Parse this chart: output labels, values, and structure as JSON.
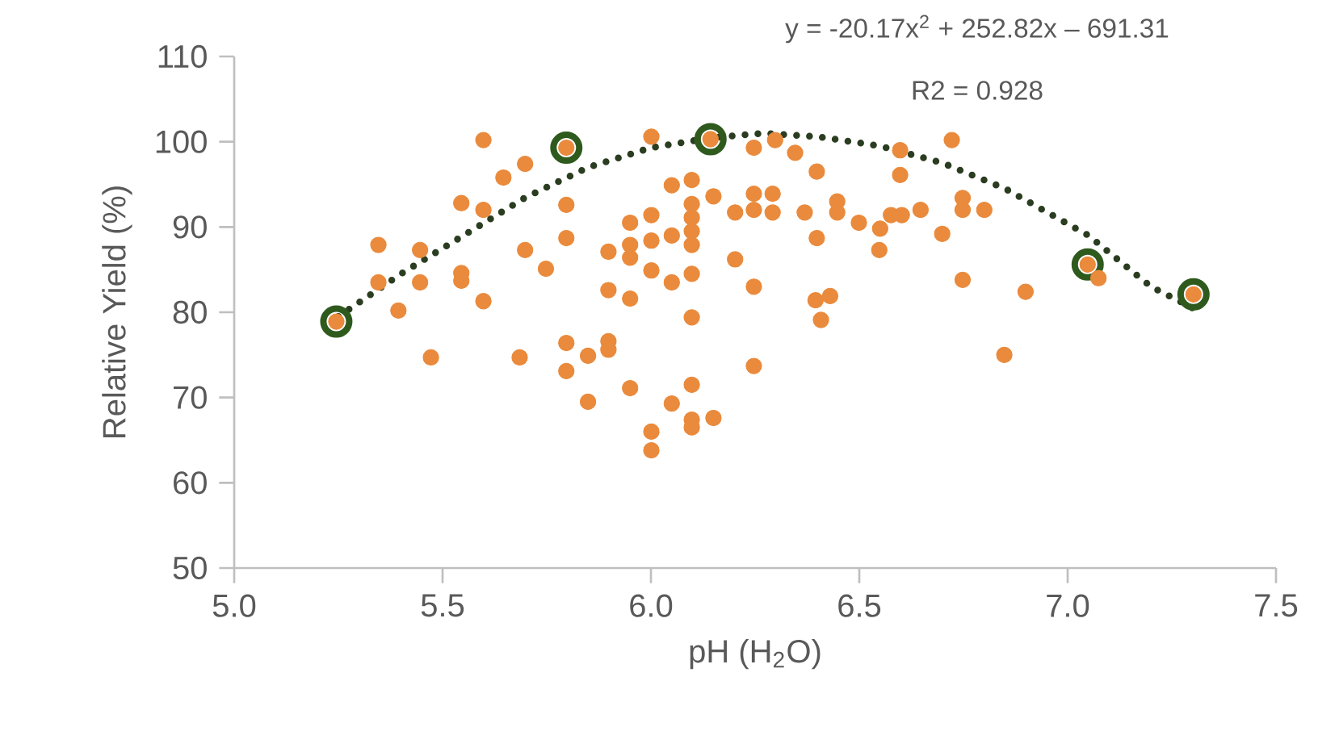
{
  "chart_data": {
    "type": "scatter",
    "xlabel": "pH (H$_{2}$O)",
    "ylabel": "Relative Yield (%)",
    "annotations": [
      "y = -20.17x$^{2}$ + 252.82x – 691.31",
      "R2 = 0.928"
    ],
    "xlim": [
      5,
      7.5
    ],
    "ylim": [
      50,
      110
    ],
    "xticks": [
      {
        "value": 5,
        "label": "5.0"
      },
      5.5,
      {
        "value": 6,
        "label": "6.0"
      },
      6.5,
      {
        "value": 7,
        "label": "7.0"
      },
      7.5
    ],
    "yticks": [
      50,
      60,
      70,
      80,
      90,
      100,
      110
    ],
    "marker": "circle",
    "grid": false,
    "series": [
      {
        "color": "#2f5a1e",
        "x": [
          5.245,
          5.797,
          6.143,
          7.048,
          7.302
        ],
        "values": [
          78.9,
          99.3,
          100.3,
          85.6,
          82.1
        ]
      },
      {
        "color": "#ea8a3c",
        "x": [
          5.245,
          5.797,
          6.143,
          7.048,
          7.302,
          5.598,
          5.698,
          5.646,
          5.545,
          5.598,
          5.797,
          5.346,
          5.446,
          5.797,
          5.698,
          5.748,
          5.346,
          5.446,
          5.545,
          5.545,
          5.598,
          5.394,
          5.472,
          5.685,
          5.797,
          5.849,
          5.797,
          5.849,
          6.001,
          6.247,
          6.298,
          6.346,
          6.398,
          6.598,
          6.598,
          6.05,
          6.098,
          6.15,
          6.098,
          6.098,
          6.098,
          6.098,
          6.202,
          6.247,
          6.247,
          6.292,
          6.292,
          6.369,
          6.447,
          6.447,
          6.499,
          6.55,
          6.576,
          6.602,
          6.647,
          6.548,
          6.398,
          5.95,
          6.001,
          6.05,
          6.001,
          5.95,
          5.95,
          5.898,
          6.001,
          6.05,
          6.098,
          6.202,
          6.247,
          5.898,
          5.95,
          6.395,
          6.43,
          6.408,
          6.098,
          5.898,
          5.898,
          6.247,
          5.95,
          6.05,
          6.098,
          6.098,
          6.098,
          6.15,
          6.001,
          6.001,
          6.722,
          6.748,
          6.748,
          6.8,
          6.699,
          6.748,
          6.899,
          6.848,
          7.074
        ],
        "values": [
          78.9,
          99.3,
          100.3,
          85.6,
          82.1,
          100.2,
          97.4,
          95.8,
          92.8,
          92.0,
          92.6,
          87.9,
          87.3,
          88.7,
          87.3,
          85.1,
          83.5,
          83.5,
          84.6,
          83.7,
          81.3,
          80.2,
          74.7,
          74.7,
          76.4,
          74.9,
          73.1,
          69.5,
          100.6,
          99.3,
          100.2,
          98.7,
          96.5,
          99.0,
          96.1,
          94.9,
          95.5,
          93.6,
          92.7,
          91.1,
          89.5,
          87.9,
          91.7,
          93.9,
          92.0,
          93.9,
          91.7,
          91.7,
          93.0,
          91.7,
          90.5,
          89.8,
          91.4,
          91.4,
          92.0,
          87.3,
          88.7,
          90.5,
          91.4,
          89.0,
          88.4,
          87.9,
          86.4,
          87.1,
          84.9,
          83.5,
          84.5,
          86.2,
          83.0,
          82.6,
          81.6,
          81.4,
          81.9,
          79.1,
          79.4,
          76.6,
          75.6,
          73.7,
          71.1,
          69.3,
          71.5,
          67.4,
          66.5,
          67.6,
          66.0,
          63.8,
          100.2,
          93.4,
          92.0,
          92.0,
          89.2,
          83.8,
          82.4,
          75.0,
          84.0
        ]
      },
      {
        "type": "line",
        "color": "#2b3d20",
        "marker": "none",
        "line_style": "dotted",
        "x": [
          5.25,
          5.4,
          5.55,
          5.7,
          5.85,
          6.0,
          6.15,
          6.27,
          6.4,
          6.55,
          6.7,
          6.85,
          7.05,
          7.2,
          7.3
        ],
        "values": [
          79.5,
          84.5,
          89,
          93.5,
          97,
          99.3,
          100.5,
          101,
          100.6,
          99.5,
          97.5,
          94.5,
          89,
          83,
          80.5
        ]
      }
    ]
  }
}
